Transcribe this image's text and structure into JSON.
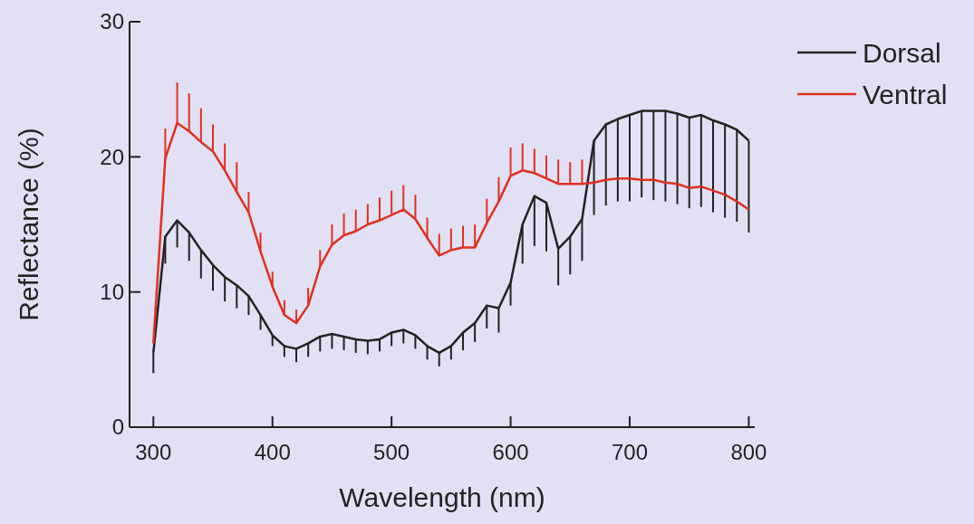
{
  "chart_data": {
    "type": "line",
    "xlabel": "Wavelength (nm)",
    "ylabel": "Reflectance (%)",
    "x": [
      300,
      310,
      320,
      330,
      340,
      350,
      360,
      370,
      380,
      390,
      400,
      410,
      420,
      430,
      440,
      450,
      460,
      470,
      480,
      490,
      500,
      510,
      520,
      530,
      540,
      550,
      560,
      570,
      580,
      590,
      600,
      610,
      620,
      630,
      640,
      650,
      660,
      670,
      680,
      690,
      700,
      710,
      720,
      730,
      740,
      750,
      760,
      770,
      780,
      790,
      800
    ],
    "xlim": [
      280,
      805
    ],
    "xticks": [
      300,
      400,
      500,
      600,
      700,
      800
    ],
    "ylim": [
      0,
      30
    ],
    "yticks": [
      0,
      10,
      20,
      30
    ],
    "grid": false,
    "legend": "top right",
    "marker": "none",
    "line_style": "solid",
    "series": [
      {
        "name": "Dorsal",
        "color": "#222222",
        "values": [
          5.5,
          14.1,
          15.3,
          14.4,
          13.1,
          12.0,
          11.1,
          10.5,
          9.7,
          8.3,
          6.8,
          6.0,
          5.8,
          6.2,
          6.7,
          6.9,
          6.7,
          6.5,
          6.4,
          6.5,
          7.0,
          7.2,
          6.8,
          6.0,
          5.5,
          6.0,
          7.0,
          7.7,
          9.0,
          8.8,
          10.7,
          15.0,
          17.1,
          16.6,
          13.2,
          14.1,
          15.4,
          21.2,
          22.4,
          22.8,
          23.1,
          23.4,
          23.4,
          23.4,
          23.2,
          22.9,
          23.1,
          22.7,
          22.4,
          22.0,
          21.2
        ],
        "errors": [
          [
            4.0,
            5.5
          ],
          [
            12.1,
            14.1
          ],
          [
            13.3,
            15.3
          ],
          [
            12.3,
            14.4
          ],
          [
            11.0,
            13.1
          ],
          [
            10.1,
            12.0
          ],
          [
            9.3,
            11.1
          ],
          [
            8.8,
            10.5
          ],
          [
            8.3,
            9.7
          ],
          [
            7.2,
            8.3
          ],
          [
            6.0,
            6.8
          ],
          [
            5.2,
            6.0
          ],
          [
            4.8,
            5.8
          ],
          [
            5.2,
            6.2
          ],
          [
            5.6,
            6.7
          ],
          [
            5.8,
            6.9
          ],
          [
            5.7,
            6.7
          ],
          [
            5.5,
            6.5
          ],
          [
            5.4,
            6.4
          ],
          [
            5.6,
            6.5
          ],
          [
            6.0,
            7.0
          ],
          [
            6.2,
            7.2
          ],
          [
            5.8,
            6.8
          ],
          [
            5.0,
            6.0
          ],
          [
            4.5,
            5.5
          ],
          [
            5.0,
            6.0
          ],
          [
            5.7,
            7.0
          ],
          [
            6.3,
            7.7
          ],
          [
            7.3,
            9.0
          ],
          [
            7.0,
            8.8
          ],
          [
            9.0,
            10.7
          ],
          [
            12.1,
            15.0
          ],
          [
            13.4,
            17.1
          ],
          [
            13.0,
            16.6
          ],
          [
            10.5,
            13.2
          ],
          [
            11.3,
            14.1
          ],
          [
            12.3,
            15.4
          ],
          [
            15.7,
            21.2
          ],
          [
            16.4,
            22.4
          ],
          [
            16.7,
            22.8
          ],
          [
            16.7,
            23.1
          ],
          [
            17.0,
            23.4
          ],
          [
            16.8,
            23.4
          ],
          [
            16.7,
            23.4
          ],
          [
            16.5,
            23.2
          ],
          [
            16.2,
            22.9
          ],
          [
            16.3,
            23.1
          ],
          [
            15.9,
            22.7
          ],
          [
            15.5,
            22.4
          ],
          [
            15.2,
            22.0
          ],
          [
            14.4,
            21.2
          ]
        ]
      },
      {
        "name": "Ventral",
        "color": "#e0301e",
        "values": [
          6.2,
          19.9,
          22.5,
          21.9,
          21.1,
          20.4,
          19.0,
          17.4,
          15.9,
          13.0,
          10.4,
          8.3,
          7.7,
          9.0,
          11.9,
          13.5,
          14.2,
          14.5,
          15.0,
          15.3,
          15.7,
          16.1,
          15.4,
          14.0,
          12.7,
          13.1,
          13.3,
          13.3,
          15.1,
          16.7,
          18.6,
          19.0,
          18.8,
          18.4,
          18.0,
          18.0,
          18.0,
          18.1,
          18.3,
          18.4,
          18.4,
          18.3,
          18.3,
          18.1,
          18.0,
          17.7,
          17.8,
          17.5,
          17.2,
          16.7,
          16.1
        ],
        "errors": [
          null,
          [
            19.9,
            22.1
          ],
          [
            22.5,
            25.5
          ],
          [
            21.9,
            24.7
          ],
          [
            21.1,
            23.6
          ],
          [
            20.4,
            22.4
          ],
          [
            19.0,
            21.0
          ],
          [
            17.4,
            19.6
          ],
          [
            15.9,
            17.4
          ],
          [
            13.0,
            14.4
          ],
          [
            10.4,
            11.5
          ],
          [
            8.3,
            9.4
          ],
          [
            7.7,
            8.7
          ],
          [
            9.0,
            10.3
          ],
          [
            11.9,
            13.1
          ],
          [
            13.5,
            15.0
          ],
          [
            14.2,
            15.8
          ],
          [
            14.5,
            16.1
          ],
          [
            15.0,
            16.5
          ],
          [
            15.3,
            17.0
          ],
          [
            15.7,
            17.5
          ],
          [
            16.1,
            17.9
          ],
          [
            15.4,
            17.2
          ],
          [
            14.0,
            15.5
          ],
          [
            12.7,
            14.3
          ],
          [
            13.1,
            14.7
          ],
          [
            13.3,
            14.9
          ],
          [
            13.3,
            15.0
          ],
          [
            15.1,
            16.9
          ],
          [
            16.7,
            18.5
          ],
          [
            18.6,
            20.7
          ],
          [
            19.0,
            21.0
          ],
          [
            18.8,
            20.6
          ],
          [
            18.4,
            20.1
          ],
          [
            18.0,
            19.8
          ],
          [
            18.0,
            19.6
          ],
          [
            18.0,
            19.8
          ],
          null,
          null,
          null,
          null,
          null,
          null,
          null,
          null,
          null,
          null,
          null,
          null,
          null,
          null
        ]
      }
    ]
  }
}
